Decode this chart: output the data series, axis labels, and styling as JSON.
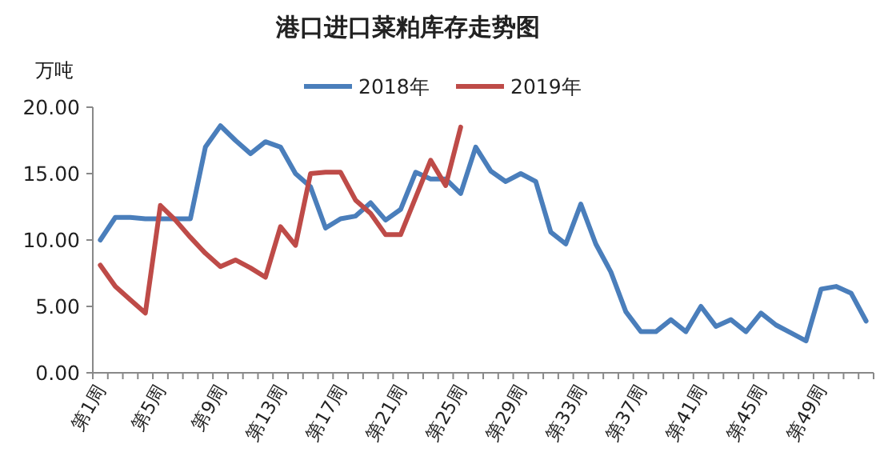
{
  "chart_data": {
    "type": "line",
    "title": "港口进口菜粕库存走势图",
    "ylabel": "万吨",
    "categories": [
      "第1周",
      null,
      null,
      null,
      "第5周",
      null,
      null,
      null,
      "第9周",
      null,
      null,
      null,
      "第13周",
      null,
      null,
      null,
      "第17周",
      null,
      null,
      null,
      "第21周",
      null,
      null,
      null,
      "第25周",
      null,
      null,
      null,
      "第29周",
      null,
      null,
      null,
      "第33周",
      null,
      null,
      null,
      "第37周",
      null,
      null,
      null,
      "第41周",
      null,
      null,
      null,
      "第45周",
      null,
      null,
      null,
      "第49周",
      null,
      null,
      null
    ],
    "series": [
      {
        "name": "2018年",
        "color": "#4a7ebb",
        "values": [
          10.0,
          11.7,
          11.7,
          11.6,
          11.6,
          11.6,
          11.6,
          17.0,
          18.6,
          17.5,
          16.5,
          17.4,
          17.0,
          15.0,
          14.0,
          10.9,
          11.6,
          11.8,
          12.8,
          11.5,
          12.3,
          15.1,
          14.6,
          14.6,
          13.5,
          17.0,
          15.2,
          14.4,
          15.0,
          14.4,
          10.6,
          9.7,
          12.7,
          9.7,
          7.6,
          4.6,
          3.1,
          3.1,
          4.0,
          3.1,
          5.0,
          3.5,
          4.0,
          3.1,
          4.5,
          3.6,
          3.0,
          2.4,
          6.3,
          6.5,
          6.0,
          3.9
        ]
      },
      {
        "name": "2019年",
        "color": "#be4b48",
        "values": [
          8.1,
          6.5,
          5.5,
          4.5,
          12.6,
          11.5,
          10.2,
          9.0,
          8.0,
          8.5,
          7.9,
          7.2,
          11.0,
          9.6,
          15.0,
          15.1,
          15.1,
          13.0,
          12.0,
          10.4,
          10.4,
          13.2,
          16.0,
          14.1,
          18.5,
          null,
          null,
          null,
          null,
          null,
          null,
          null,
          null,
          null,
          null,
          null,
          null,
          null,
          null,
          null,
          null,
          null,
          null,
          null,
          null,
          null,
          null,
          null,
          null,
          null,
          null,
          null
        ]
      }
    ],
    "ylim": [
      0,
      20
    ],
    "yticks": [
      {
        "value": 0,
        "label": "0.00"
      },
      {
        "value": 5,
        "label": "5.00"
      },
      {
        "value": 10,
        "label": "10.00"
      },
      {
        "value": 15,
        "label": "15.00"
      },
      {
        "value": 20,
        "label": "20.00"
      }
    ],
    "legend": "top",
    "line_style": "solid",
    "marker": "none"
  }
}
